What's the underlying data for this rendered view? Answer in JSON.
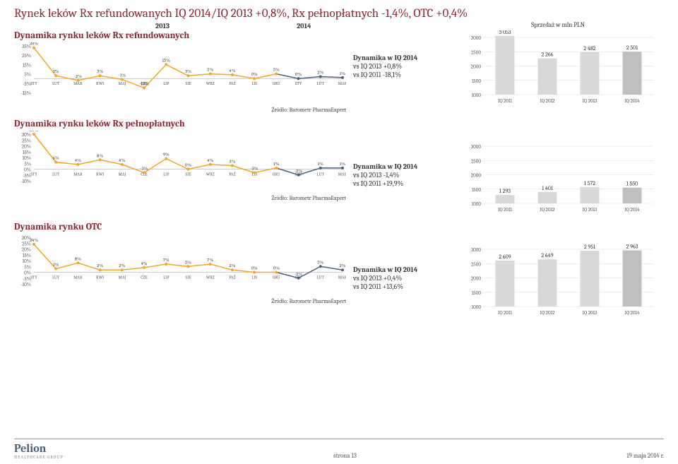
{
  "page_title": "Rynek leków Rx refundowanych IQ 2014/IQ 2013 +0,8%, Rx pełnopłatnych -1,4%, OTC +0,4%",
  "year_2013": "2013",
  "year_2014": "2014",
  "sprzedaz_label": "Sprzedaż w mln PLN",
  "source_label": "Źródło: Barometr PharmaExpert",
  "months": [
    "STY",
    "LUT",
    "MAR",
    "KWI",
    "MAJ",
    "CZE",
    "LIP",
    "SIE",
    "WRZ",
    "PAŹ",
    "LIS",
    "GRU",
    "STY",
    "LUT",
    "MAR"
  ],
  "chart1": {
    "subtitle": "Dynamika rynku leków Rx refundowanych",
    "ymin": -15,
    "ymax": 35,
    "ystep": 10,
    "color_2013": "#f5a623",
    "color_2014": "#4a5f7a",
    "values": [
      33,
      3,
      -2,
      3,
      -1,
      -10,
      15,
      3,
      5,
      4,
      0,
      5,
      0,
      2,
      1
    ],
    "labels": [
      "33%",
      "3%",
      "-2%",
      "3%",
      "-1%",
      "-10%",
      "15%",
      "3%",
      "5%",
      "4%",
      "0%",
      "5%",
      "0%",
      "2%",
      "1%"
    ],
    "mid_title": "Dynamika w IQ 2014",
    "mid_l1": "vs IQ 2013 +0,8%",
    "mid_l2": "vs IQ 2011 -18,1%",
    "bar": {
      "ymin": 1000,
      "ymax": 3000,
      "ystep": 500,
      "cats": [
        "IQ 2011",
        "IQ 2012",
        "IQ 2013",
        "IQ 2014"
      ],
      "vals": [
        3053,
        2266,
        2482,
        2501
      ],
      "labels": [
        "3 053",
        "2 266",
        "2 482",
        "2 501"
      ],
      "colors": [
        "#d9d9d9",
        "#d9d9d9",
        "#d9d9d9",
        "#bfbfbf"
      ]
    }
  },
  "chart2": {
    "subtitle": "Dynamika rynku leków Rx pełnopłatnych",
    "ymin": -10,
    "ymax": 30,
    "ystep": 5,
    "color_2013": "#f5a623",
    "color_2014": "#4a5f7a",
    "values": [
      30,
      6,
      4,
      8,
      4,
      -3,
      9,
      0,
      4,
      3,
      -3,
      1,
      -5,
      1,
      1
    ],
    "labels": [
      "30%",
      "6%",
      "4%",
      "8%",
      "4%",
      "-3%",
      "9%",
      "0%",
      "4%",
      "3%",
      "-3%",
      "1%",
      "-5%",
      "1%",
      "1%"
    ],
    "mid_title": "Dynamika w IQ 2014",
    "mid_l1": "vs IQ 2013 -1,4%",
    "mid_l2": "vs IQ 2011 +19,9%",
    "bar": {
      "ymin": 1000,
      "ymax": 3000,
      "ystep": 500,
      "cats": [
        "IQ 2011",
        "IQ 2012",
        "IQ 2013",
        "IQ 2014"
      ],
      "vals": [
        1293,
        1401,
        1572,
        1550
      ],
      "labels": [
        "1 293",
        "1 401",
        "1 572",
        "1 550"
      ],
      "colors": [
        "#d9d9d9",
        "#d9d9d9",
        "#d9d9d9",
        "#bfbfbf"
      ]
    }
  },
  "chart3": {
    "subtitle": "Dynamika rynku OTC",
    "ymin": -10,
    "ymax": 30,
    "ystep": 5,
    "color_2013": "#f5a623",
    "color_2014": "#4a5f7a",
    "values": [
      24,
      3,
      8,
      2,
      2,
      4,
      7,
      5,
      7,
      2,
      0,
      0,
      -5,
      5,
      2
    ],
    "labels": [
      "24%",
      "3%",
      "8%",
      "2%",
      "2%",
      "4%",
      "7%",
      "5%",
      "7%",
      "2%",
      "0%",
      "0%",
      "-5%",
      "5%",
      "2%"
    ],
    "mid_title": "Dynamika w IQ 2014",
    "mid_l1": "vs IQ 2013 +0,4%",
    "mid_l2": "vs IQ 2011 +13,6%",
    "bar": {
      "ymin": 1000,
      "ymax": 3000,
      "ystep": 500,
      "cats": [
        "IQ 2011",
        "IQ 2012",
        "IQ 2013",
        "IQ 2014"
      ],
      "vals": [
        2609,
        2649,
        2951,
        2963
      ],
      "labels": [
        "2 609",
        "2 649",
        "2 951",
        "2 963"
      ],
      "colors": [
        "#d9d9d9",
        "#d9d9d9",
        "#d9d9d9",
        "#bfbfbf"
      ]
    }
  },
  "footer": {
    "logo": "Pelion",
    "logo_sub": "HEALTHCARE GROUP",
    "page": "strona 13",
    "date": "19 maja 2014 r."
  }
}
